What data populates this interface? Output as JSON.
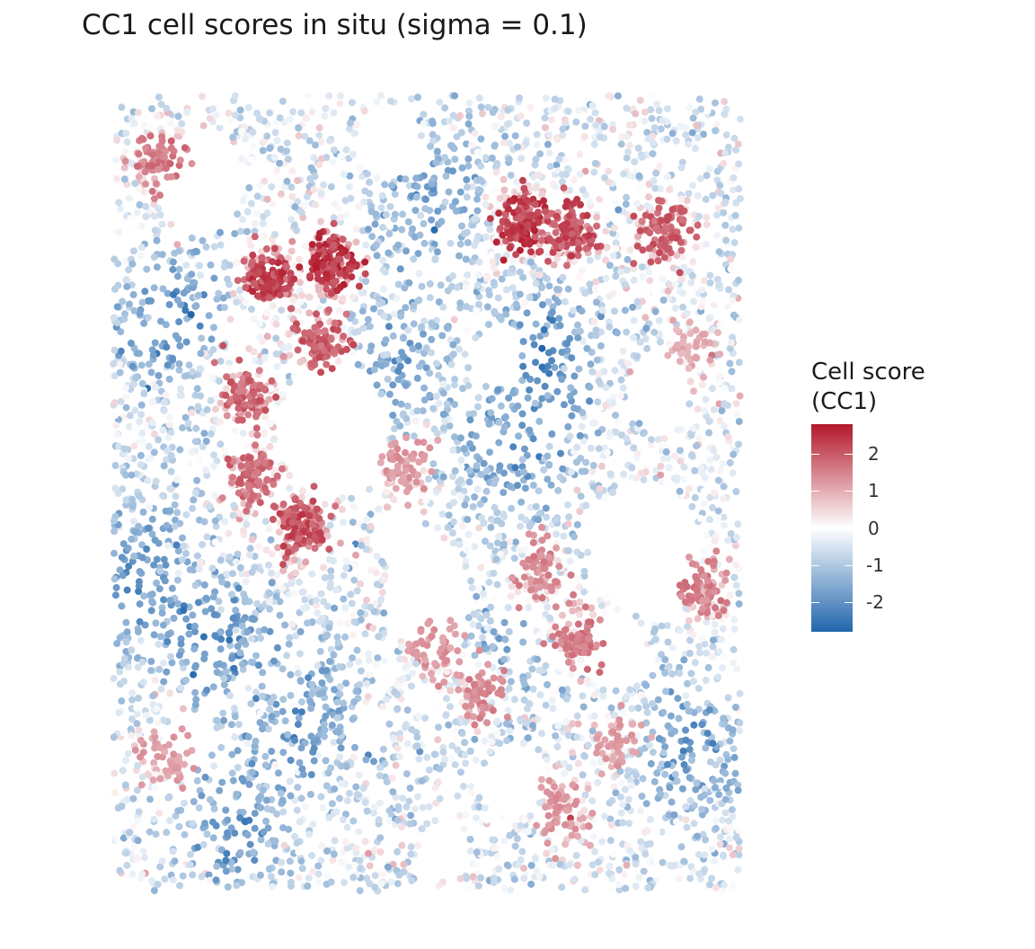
{
  "chart_data": {
    "type": "scatter",
    "title": "CC1 cell scores in situ (sigma = 0.1)",
    "xlabel": "",
    "ylabel": "",
    "axes_visible": false,
    "grid": false,
    "legend_placement": "right",
    "color_scale": {
      "title_line1": "Cell score",
      "title_line2": "(CC1)",
      "min": -2.8,
      "max": 2.8,
      "breaks": [
        2,
        1,
        0,
        -1,
        -2
      ],
      "break_labels": [
        "2",
        "1",
        "0",
        "-1",
        "-2"
      ],
      "low_color": "#2166ac",
      "mid_color": "#ffffff",
      "high_color": "#b2182b"
    },
    "xlim": [
      0,
      1
    ],
    "ylim": [
      0,
      1
    ],
    "hotspots_high": [
      {
        "x": 0.35,
        "y": 0.79,
        "score": 2.6
      },
      {
        "x": 0.25,
        "y": 0.77,
        "score": 2.4
      },
      {
        "x": 0.65,
        "y": 0.84,
        "score": 2.5
      },
      {
        "x": 0.73,
        "y": 0.83,
        "score": 2.2
      },
      {
        "x": 0.07,
        "y": 0.92,
        "score": 1.6
      },
      {
        "x": 0.33,
        "y": 0.69,
        "score": 2.0
      },
      {
        "x": 0.21,
        "y": 0.62,
        "score": 1.9
      },
      {
        "x": 0.3,
        "y": 0.46,
        "score": 2.2
      },
      {
        "x": 0.22,
        "y": 0.52,
        "score": 1.8
      },
      {
        "x": 0.88,
        "y": 0.83,
        "score": 2.0
      },
      {
        "x": 0.94,
        "y": 0.38,
        "score": 1.5
      },
      {
        "x": 0.68,
        "y": 0.4,
        "score": 1.4
      },
      {
        "x": 0.59,
        "y": 0.25,
        "score": 1.4
      },
      {
        "x": 0.51,
        "y": 0.3,
        "score": 1.2
      },
      {
        "x": 0.72,
        "y": 0.1,
        "score": 1.2
      },
      {
        "x": 0.8,
        "y": 0.19,
        "score": 1.1
      },
      {
        "x": 0.74,
        "y": 0.32,
        "score": 1.6
      },
      {
        "x": 0.46,
        "y": 0.53,
        "score": 1.2
      },
      {
        "x": 0.09,
        "y": 0.17,
        "score": 1.1
      },
      {
        "x": 0.92,
        "y": 0.68,
        "score": 0.9
      }
    ],
    "hotspots_low": [
      {
        "x": 0.09,
        "y": 0.72,
        "score": -1.4
      },
      {
        "x": 0.5,
        "y": 0.87,
        "score": -1.2
      },
      {
        "x": 0.69,
        "y": 0.68,
        "score": -1.4
      },
      {
        "x": 0.64,
        "y": 0.55,
        "score": -1.1
      },
      {
        "x": 0.03,
        "y": 0.4,
        "score": -1.3
      },
      {
        "x": 0.16,
        "y": 0.32,
        "score": -1.3
      },
      {
        "x": 0.31,
        "y": 0.22,
        "score": -1.2
      },
      {
        "x": 0.19,
        "y": 0.08,
        "score": -1.3
      },
      {
        "x": 0.91,
        "y": 0.18,
        "score": -1.3
      },
      {
        "x": 0.44,
        "y": 0.66,
        "score": -1.0
      },
      {
        "x": 0.62,
        "y": 0.3,
        "score": -0.9
      }
    ],
    "empty_regions": [
      {
        "x": 0.14,
        "y": 0.89,
        "r": 0.07
      },
      {
        "x": 0.44,
        "y": 0.94,
        "r": 0.05
      },
      {
        "x": 0.35,
        "y": 0.58,
        "r": 0.09
      },
      {
        "x": 0.85,
        "y": 0.43,
        "r": 0.09
      },
      {
        "x": 0.87,
        "y": 0.63,
        "r": 0.05
      },
      {
        "x": 0.61,
        "y": 0.67,
        "r": 0.04
      },
      {
        "x": 0.5,
        "y": 0.37,
        "r": 0.07
      },
      {
        "x": 0.64,
        "y": 0.14,
        "r": 0.05
      },
      {
        "x": 0.12,
        "y": 0.19,
        "r": 0.04
      },
      {
        "x": 0.53,
        "y": 0.05,
        "r": 0.04
      },
      {
        "x": 0.41,
        "y": 0.2,
        "r": 0.03
      },
      {
        "x": 0.46,
        "y": 0.45,
        "r": 0.04
      },
      {
        "x": 0.8,
        "y": 0.3,
        "r": 0.05
      }
    ]
  }
}
